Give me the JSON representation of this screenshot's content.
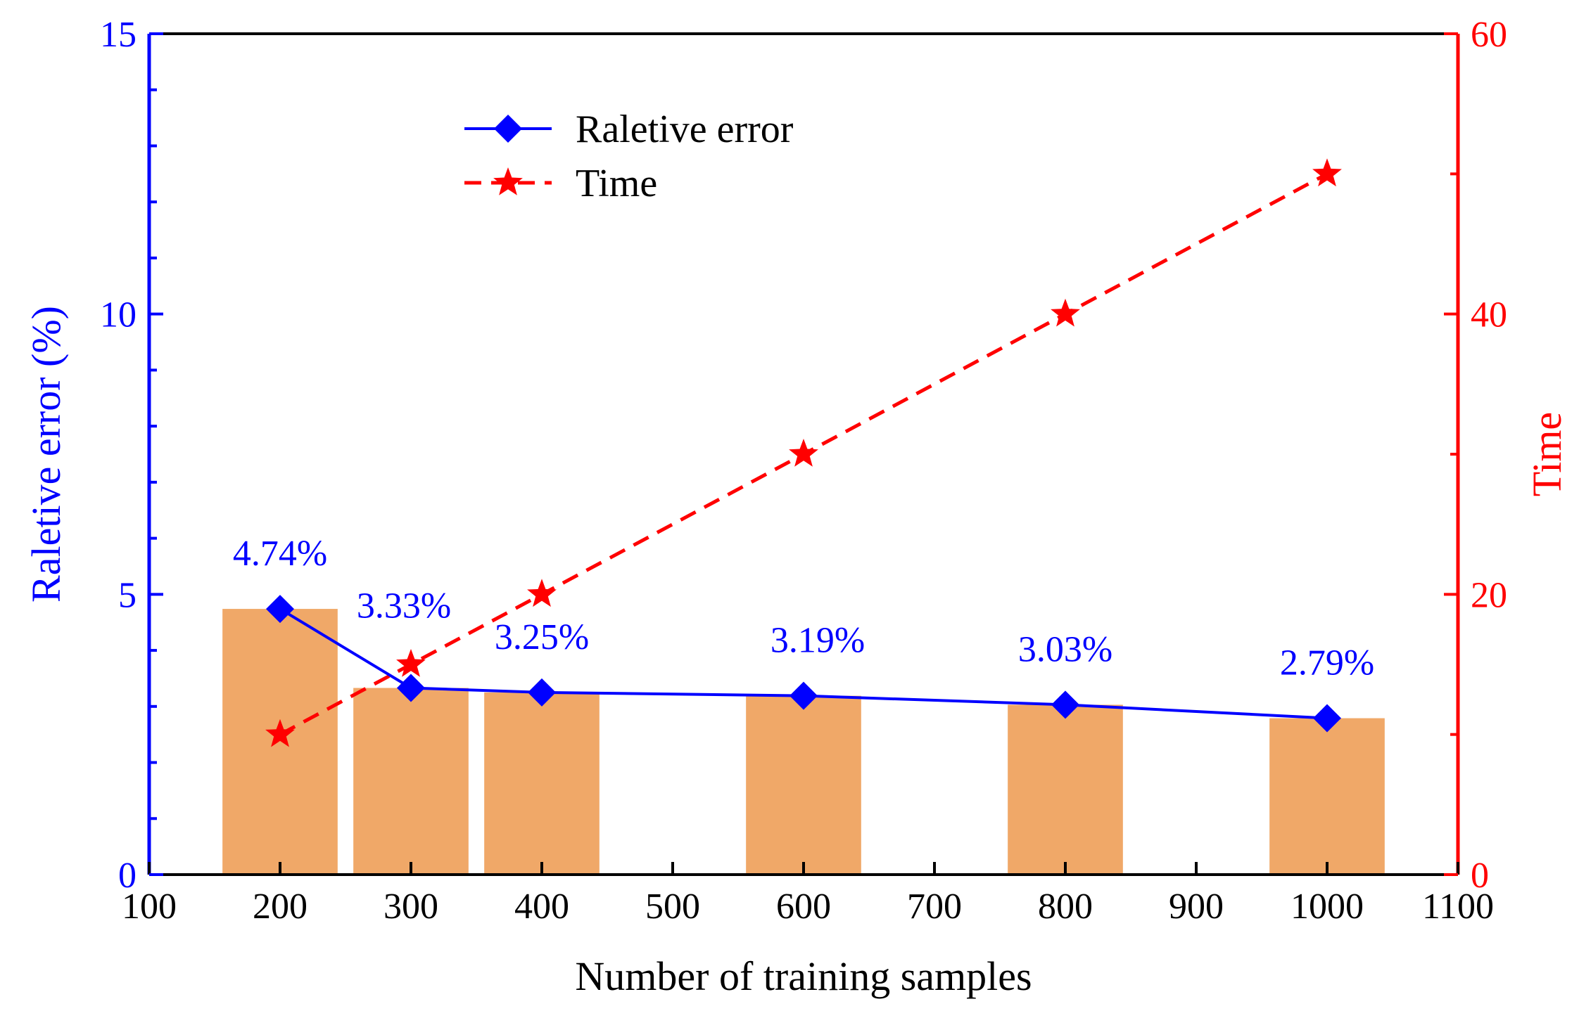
{
  "chart_data": {
    "type": "bar",
    "title": "",
    "xlabel": "Number of training samples",
    "ylabel_left": "Raletive error (%)",
    "ylabel_right": "Time",
    "xlim": [
      100,
      1100
    ],
    "ylim_left": [
      0,
      15
    ],
    "ylim_right": [
      0,
      60
    ],
    "x_ticks": [
      100,
      200,
      300,
      400,
      500,
      600,
      700,
      800,
      900,
      1000,
      1100
    ],
    "y_left_ticks": [
      0,
      5,
      10,
      15
    ],
    "y_right_ticks": [
      0,
      20,
      40,
      60
    ],
    "bar_width_units": 88,
    "bars": {
      "name": "Raletive error (bar)",
      "color": "#F0A868",
      "x": [
        200,
        300,
        400,
        600,
        800,
        1000
      ],
      "values": [
        4.74,
        3.33,
        3.25,
        3.19,
        3.03,
        2.79
      ]
    },
    "series": [
      {
        "name": "Raletive error",
        "axis": "left",
        "color": "#0000FF",
        "marker": "diamond",
        "line": "solid",
        "x": [
          200,
          300,
          400,
          600,
          800,
          1000
        ],
        "values": [
          4.74,
          3.33,
          3.25,
          3.19,
          3.03,
          2.79
        ]
      },
      {
        "name": "Time",
        "axis": "right",
        "color": "#FF0000",
        "marker": "star",
        "line": "dashed",
        "x": [
          200,
          300,
          400,
          600,
          800,
          1000
        ],
        "values": [
          10,
          15,
          20,
          30,
          40,
          50
        ]
      }
    ],
    "data_labels": [
      "4.74%",
      "3.33%",
      "3.25%",
      "3.19%",
      "3.03%",
      "2.79%"
    ],
    "legend": {
      "placement": "top-center",
      "entries": [
        "Raletive error",
        "Time"
      ]
    }
  }
}
